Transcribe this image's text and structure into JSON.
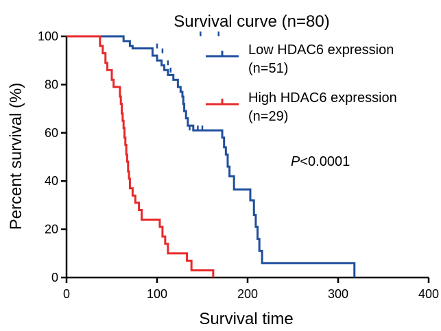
{
  "chart_data": {
    "type": "line",
    "title": "Survival curve (n=80)",
    "xlabel": "Survival time",
    "ylabel": "Percent survival (%)",
    "xlim": [
      0,
      400
    ],
    "ylim": [
      0,
      100
    ],
    "xticks": [
      0,
      100,
      200,
      300,
      400
    ],
    "yticks": [
      0,
      20,
      40,
      60,
      80,
      100
    ],
    "grid": false,
    "legend_position": "top-right",
    "annotation": {
      "italic": "P",
      "rest": "<0.0001"
    },
    "series": [
      {
        "name": "Low HDAC6 expression",
        "name_line2": "(n=51)",
        "color": "#1f4e9c",
        "step": true,
        "points": [
          [
            0,
            100
          ],
          [
            60,
            100
          ],
          [
            63,
            98
          ],
          [
            70,
            96
          ],
          [
            73,
            95
          ],
          [
            90,
            95
          ],
          [
            95,
            92
          ],
          [
            100,
            90
          ],
          [
            105,
            88
          ],
          [
            108,
            86
          ],
          [
            112,
            84
          ],
          [
            118,
            82
          ],
          [
            123,
            79
          ],
          [
            126,
            77
          ],
          [
            128,
            75
          ],
          [
            129,
            72
          ],
          [
            130,
            69
          ],
          [
            132,
            66
          ],
          [
            134,
            63
          ],
          [
            140,
            61
          ],
          [
            170,
            61
          ],
          [
            172,
            58
          ],
          [
            174,
            54
          ],
          [
            176,
            51
          ],
          [
            178,
            46
          ],
          [
            180,
            42
          ],
          [
            185,
            36.5
          ],
          [
            200,
            36.5
          ],
          [
            203,
            32
          ],
          [
            207,
            26
          ],
          [
            209,
            21
          ],
          [
            211,
            16
          ],
          [
            213,
            11
          ],
          [
            216,
            6
          ],
          [
            318,
            6
          ],
          [
            318,
            0
          ]
        ],
        "censored": [
          [
            168,
            100
          ],
          [
            148,
            100
          ],
          [
            100,
            95
          ],
          [
            106,
            93
          ],
          [
            112,
            88
          ],
          [
            115,
            85
          ],
          [
            136,
            61
          ],
          [
            145,
            61
          ],
          [
            150,
            61
          ]
        ]
      },
      {
        "name": "High HDAC6 expression",
        "name_line2": "(n=29)",
        "color": "#e8292a",
        "step": true,
        "points": [
          [
            0,
            100
          ],
          [
            35,
            100
          ],
          [
            37,
            96
          ],
          [
            40,
            93
          ],
          [
            43,
            89
          ],
          [
            45,
            86
          ],
          [
            50,
            82
          ],
          [
            52,
            79
          ],
          [
            58,
            79
          ],
          [
            59,
            75
          ],
          [
            60,
            72
          ],
          [
            61,
            68
          ],
          [
            62,
            65
          ],
          [
            63,
            62
          ],
          [
            64,
            58
          ],
          [
            65,
            55
          ],
          [
            66,
            51
          ],
          [
            67,
            48
          ],
          [
            68,
            44
          ],
          [
            69,
            41
          ],
          [
            70,
            37
          ],
          [
            73,
            34
          ],
          [
            76,
            31
          ],
          [
            80,
            28
          ],
          [
            83,
            24
          ],
          [
            100,
            24
          ],
          [
            103,
            21
          ],
          [
            106,
            17
          ],
          [
            109,
            14
          ],
          [
            112,
            10
          ],
          [
            130,
            10
          ],
          [
            133,
            7
          ],
          [
            138,
            3
          ],
          [
            161,
            3
          ],
          [
            162,
            0
          ]
        ],
        "censored": []
      }
    ]
  }
}
